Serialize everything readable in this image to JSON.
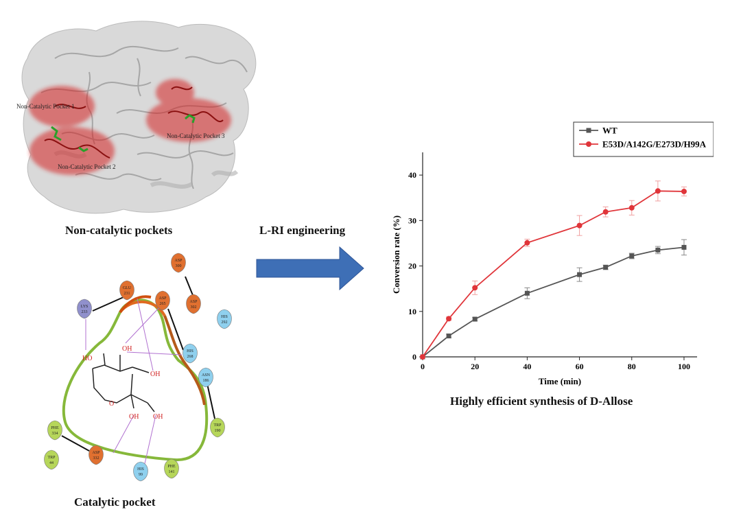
{
  "panels": {
    "structure": {
      "caption": "Non-catalytic pockets",
      "pocket_labels": [
        "Non-Catalytic Pocket 1",
        "Non-Catalytic Pocket 2",
        "Non-Catalytic Pocket 3"
      ],
      "highlight_color": "#d42020"
    },
    "interaction": {
      "caption": "Catalytic pocket",
      "ligand_labels": [
        "HO",
        "OH",
        "OH",
        "O",
        "OH",
        "OH"
      ],
      "residues": [
        {
          "name": "ASP",
          "num": "300",
          "color": "#e07030"
        },
        {
          "name": "ASP",
          "num": "302",
          "color": "#e07030"
        },
        {
          "name": "GLU",
          "num": "231",
          "color": "#e07030"
        },
        {
          "name": "ASP",
          "num": "265",
          "color": "#e07030"
        },
        {
          "name": "HIS",
          "num": "292",
          "color": "#8fd0ee"
        },
        {
          "name": "LYS",
          "num": "233",
          "color": "#9090cc"
        },
        {
          "name": "HIS",
          "num": "268",
          "color": "#8fd0ee"
        },
        {
          "name": "ASN",
          "num": "186",
          "color": "#8fd0ee"
        },
        {
          "name": "TRP",
          "num": "190",
          "color": "#b6d65a"
        },
        {
          "name": "PHE",
          "num": "334",
          "color": "#b6d65a"
        },
        {
          "name": "TRP",
          "num": "44",
          "color": "#b6d65a"
        },
        {
          "name": "ASP",
          "num": "332",
          "color": "#e07030"
        },
        {
          "name": "HIS",
          "num": "99",
          "color": "#8fd0ee"
        },
        {
          "name": "PHE",
          "num": "141",
          "color": "#b6d65a"
        }
      ]
    },
    "arrow": {
      "label": "L-RI engineering",
      "color": "#3e6fb6"
    },
    "chart": {
      "caption": "Highly efficient synthesis of D-Allose"
    }
  },
  "chart_data": {
    "type": "line",
    "xlabel": "Time (min)",
    "ylabel": "Conversion rate (%)",
    "xlim": [
      0,
      105
    ],
    "ylim": [
      0,
      45
    ],
    "xticks": [
      0,
      20,
      40,
      60,
      80,
      100
    ],
    "yticks": [
      0,
      10,
      20,
      30,
      40
    ],
    "legend_position": "top-right",
    "series": [
      {
        "name": "WT",
        "color": "#555555",
        "marker": "square",
        "x": [
          0,
          10,
          20,
          40,
          60,
          70,
          80,
          90,
          100
        ],
        "y": [
          0,
          4.6,
          8.3,
          14.0,
          18.1,
          19.7,
          22.2,
          23.5,
          24.1
        ],
        "err": [
          0,
          0.4,
          0.4,
          1.2,
          1.5,
          0.5,
          0.6,
          0.8,
          1.7
        ]
      },
      {
        "name": "E53D/A142G/E273D/H99A",
        "color": "#e0353a",
        "marker": "circle",
        "x": [
          0,
          10,
          20,
          40,
          60,
          70,
          80,
          90,
          100
        ],
        "y": [
          0,
          8.4,
          15.2,
          25.1,
          28.9,
          31.9,
          32.8,
          36.5,
          36.4
        ],
        "err": [
          0,
          0.4,
          1.5,
          0.8,
          2.2,
          1.1,
          1.6,
          2.2,
          1.0
        ]
      }
    ]
  }
}
